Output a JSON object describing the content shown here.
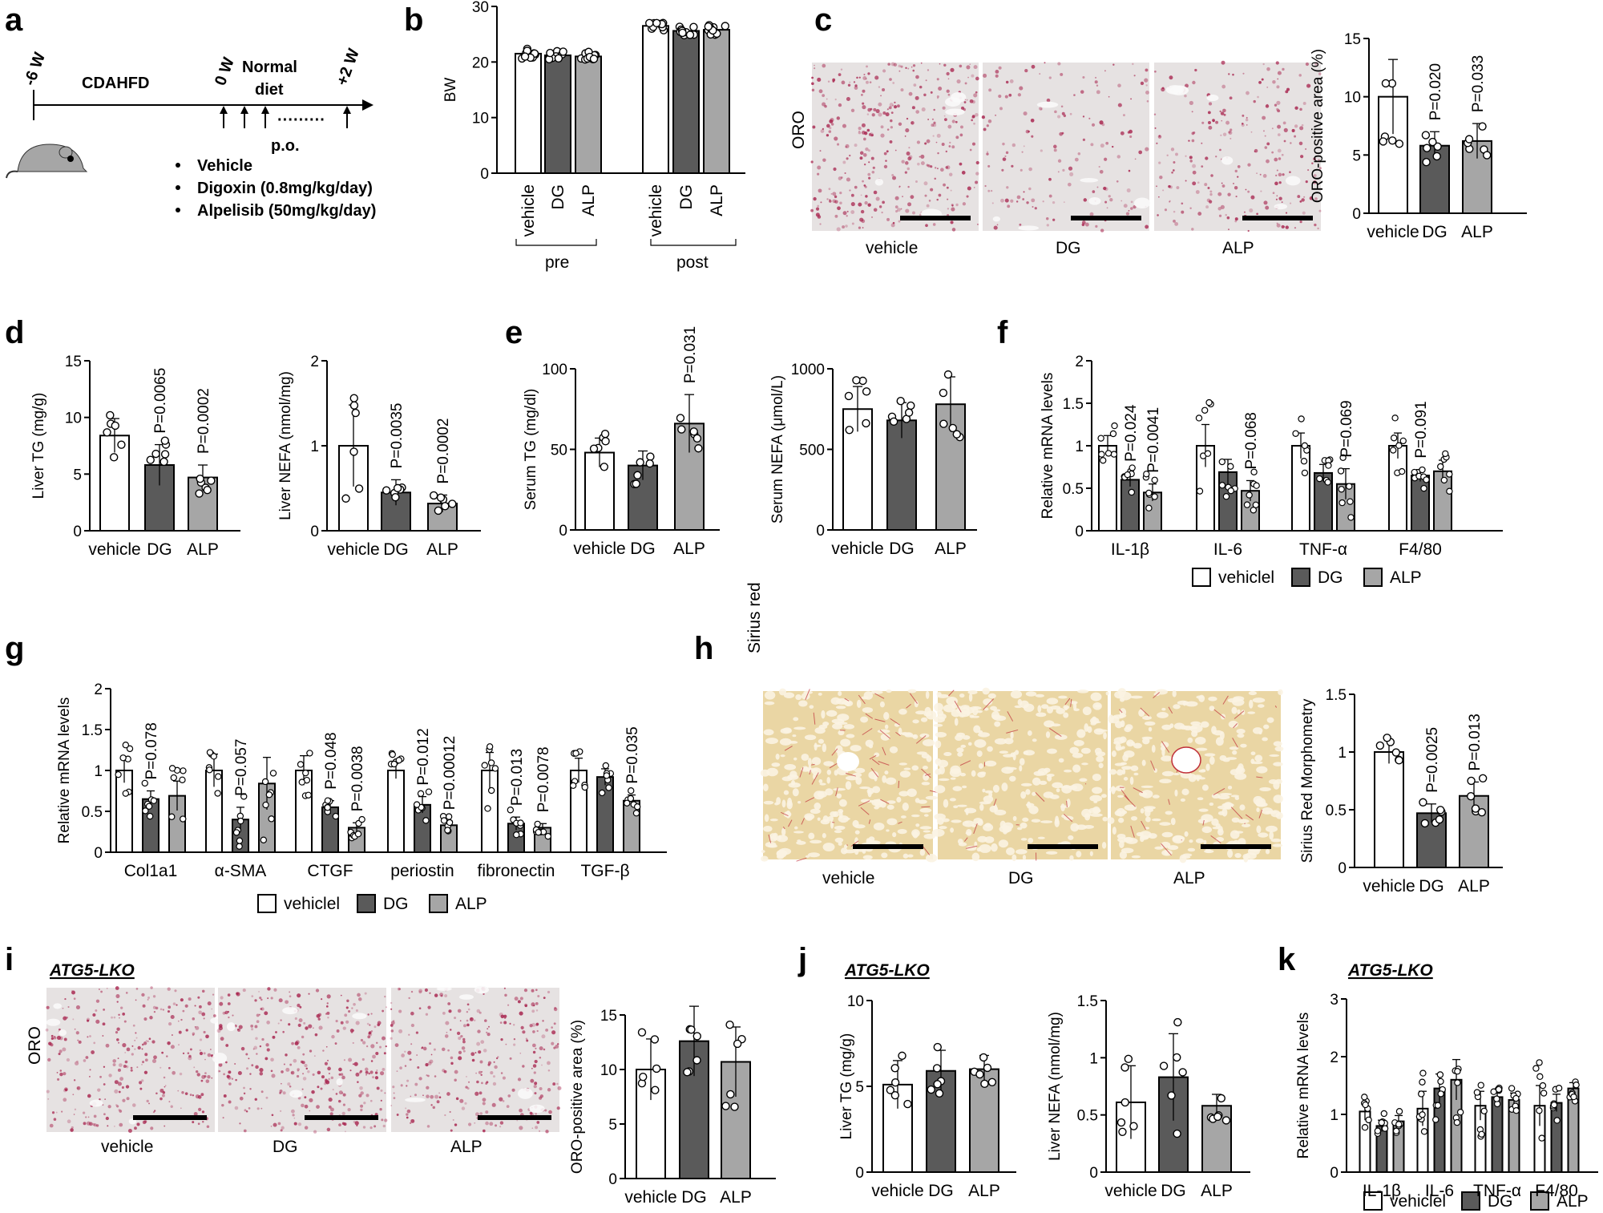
{
  "panel_letters": {
    "a": "a",
    "b": "b",
    "c": "c",
    "d": "d",
    "e": "e",
    "f": "f",
    "g": "g",
    "h": "h",
    "i": "i",
    "j": "j",
    "k": "k"
  },
  "timeline": {
    "start": "-6 W",
    "mid": "0 W",
    "end": "+2 W",
    "phase1": "CDAHFD",
    "phase2_line1": "Normal",
    "phase2_line2": "diet",
    "dots": "·········",
    "route": "p.o.",
    "bullets": [
      "Vehicle",
      "Digoxin (0.8mg/kg/day)",
      "Alpelisib (50mg/kg/day)"
    ]
  },
  "micrographs": {
    "c": {
      "row_label": "ORO",
      "labels": [
        "vehicle",
        "DG",
        "ALP"
      ]
    },
    "h": {
      "row_label": "Sirius red",
      "labels": [
        "vehicle",
        "DG",
        "ALP"
      ]
    },
    "i": {
      "row_label": "ORO",
      "labels": [
        "vehicle",
        "DG",
        "ALP"
      ]
    }
  },
  "atg_labels": {
    "i": "ATG5-LKO",
    "j": "ATG5-LKO",
    "k": "ATG5-LKO"
  },
  "legends": {
    "f": [
      "vehiclel",
      "DG",
      "ALP"
    ],
    "g": [
      "vehiclel",
      "DG",
      "ALP"
    ],
    "k": [
      "vehiclel",
      "DG",
      "ALP"
    ]
  },
  "colors": {
    "vehicle": "#ffffff",
    "DG": "#5a5a5a",
    "ALP": "#a6a6a6",
    "stroke": "#000000",
    "oro_bg": "#e6e2e2",
    "oro_dot": "#a8244e",
    "sirius_bg": "#ead6a4",
    "sirius_line": "#c0303a"
  },
  "chart_data": [
    {
      "id": "b",
      "type": "bar",
      "ylabel": "BW",
      "ylim": [
        0,
        30
      ],
      "yticks": [
        "0",
        "10",
        "20",
        "30"
      ],
      "categories": [
        "vehicle",
        "DG",
        "ALP",
        "vehicle",
        "DG",
        "ALP"
      ],
      "values": [
        21.5,
        21.2,
        21.0,
        26.5,
        25.6,
        25.8
      ],
      "group_labels": [
        "pre",
        "post"
      ]
    },
    {
      "id": "c",
      "type": "bar",
      "ylabel": "ORO-positive area (%)",
      "ylim": [
        0,
        15
      ],
      "yticks": [
        "0",
        "5",
        "10",
        "15"
      ],
      "categories": [
        "vehicle",
        "DG",
        "ALP"
      ],
      "values": [
        10.0,
        5.8,
        6.2
      ],
      "errors": [
        3.2,
        1.2,
        1.5
      ],
      "pvalues": [
        "",
        "P=0.020",
        "P=0.033"
      ]
    },
    {
      "id": "d1",
      "type": "bar",
      "ylabel": "Liver TG (mg/g)",
      "ylim": [
        0,
        15
      ],
      "yticks": [
        "0",
        "5",
        "10",
        "15"
      ],
      "categories": [
        "vehicle",
        "DG",
        "ALP"
      ],
      "values": [
        8.4,
        5.8,
        4.7
      ],
      "errors": [
        1.5,
        1.8,
        1.1
      ],
      "pvalues": [
        "",
        "P=0.0065",
        "P=0.0002"
      ]
    },
    {
      "id": "d2",
      "type": "bar",
      "ylabel": "Liver NEFA (nmol/mg)",
      "ylim": [
        0,
        2
      ],
      "yticks": [
        "0",
        "1",
        "2"
      ],
      "categories": [
        "vehicle",
        "DG",
        "ALP"
      ],
      "values": [
        1.0,
        0.45,
        0.32
      ],
      "errors": [
        0.48,
        0.15,
        0.1
      ],
      "pvalues": [
        "",
        "P=0.0035",
        "P=0.0002"
      ]
    },
    {
      "id": "e1",
      "type": "bar",
      "ylabel": "Serum TG (mg/dl)",
      "ylim": [
        0,
        100
      ],
      "yticks": [
        "0",
        "50",
        "100"
      ],
      "categories": [
        "vehicle",
        "DG",
        "ALP"
      ],
      "values": [
        48,
        40,
        66
      ],
      "errors": [
        9,
        9,
        18
      ],
      "pvalues": [
        "",
        "",
        "P=0.031"
      ]
    },
    {
      "id": "e2",
      "type": "bar",
      "ylabel": "Serum NEFA (μmol/L)",
      "ylim": [
        0,
        1000
      ],
      "yticks": [
        "0",
        "500",
        "1000"
      ],
      "categories": [
        "vehicle",
        "DG",
        "ALP"
      ],
      "values": [
        750,
        680,
        780
      ],
      "errors": [
        140,
        110,
        170
      ],
      "pvalues": [
        "",
        "",
        ""
      ]
    },
    {
      "id": "f",
      "type": "grouped-bar",
      "ylabel": "Relative mRNA levels",
      "ylim": [
        0,
        2
      ],
      "yticks": [
        "0",
        "0.5",
        "1",
        "1.5",
        "2"
      ],
      "categories": [
        "IL-1β",
        "IL-6",
        "TNF-α",
        "F4/80"
      ],
      "series": [
        {
          "name": "vehiclel",
          "values": [
            1.0,
            1.0,
            1.0,
            1.0
          ],
          "errors": [
            0.12,
            0.25,
            0.15,
            0.15
          ]
        },
        {
          "name": "DG",
          "values": [
            0.6,
            0.69,
            0.68,
            0.65
          ],
          "errors": [
            0.08,
            0.15,
            0.1,
            0.07
          ]
        },
        {
          "name": "ALP",
          "values": [
            0.45,
            0.47,
            0.55,
            0.7
          ],
          "errors": [
            0.1,
            0.12,
            0.18,
            0.13
          ]
        }
      ],
      "pvalues": [
        [
          "",
          "P=0.024",
          "P=0.0041"
        ],
        [
          "",
          "",
          "P=0.068"
        ],
        [
          "",
          "",
          "P=0.069"
        ],
        [
          "",
          "P=0.091",
          ""
        ]
      ]
    },
    {
      "id": "g",
      "type": "grouped-bar",
      "ylabel": "Relative mRNA levels",
      "ylim": [
        0,
        2
      ],
      "yticks": [
        "0",
        "0.5",
        "1",
        "1.5",
        "2"
      ],
      "categories": [
        "Col1a1",
        "α-SMA",
        "CTGF",
        "periostin",
        "fibronectin",
        "TGF-β"
      ],
      "series": [
        {
          "name": "vehiclel",
          "values": [
            1.0,
            1.0,
            1.0,
            1.0,
            1.0,
            1.0
          ],
          "errors": [
            0.15,
            0.2,
            0.18,
            0.1,
            0.22,
            0.15
          ]
        },
        {
          "name": "DG",
          "values": [
            0.65,
            0.4,
            0.55,
            0.58,
            0.35,
            0.92
          ],
          "errors": [
            0.1,
            0.15,
            0.08,
            0.1,
            0.08,
            0.1
          ]
        },
        {
          "name": "ALP",
          "values": [
            0.69,
            0.84,
            0.3,
            0.33,
            0.3,
            0.63
          ],
          "errors": [
            0.18,
            0.32,
            0.06,
            0.05,
            0.05,
            0.07
          ]
        }
      ],
      "pvalues": [
        [
          "",
          "P=0.078",
          ""
        ],
        [
          "",
          "P=0.057",
          ""
        ],
        [
          "",
          "P=0.048",
          "P=0.0038"
        ],
        [
          "",
          "P=0.012",
          "P=0.00012"
        ],
        [
          "",
          "P=0.013",
          "P=0.0078"
        ],
        [
          "",
          "",
          "P=0.035"
        ]
      ]
    },
    {
      "id": "h",
      "type": "bar",
      "ylabel": "Sirius Red Morphometry",
      "ylim": [
        0,
        1.5
      ],
      "yticks": [
        "0",
        "0.5",
        "1",
        "1.5"
      ],
      "categories": [
        "vehicle",
        "DG",
        "ALP"
      ],
      "values": [
        1.0,
        0.47,
        0.62
      ],
      "errors": [
        0.1,
        0.08,
        0.12
      ],
      "pvalues": [
        "",
        "P=0.0025",
        "P=0.013"
      ]
    },
    {
      "id": "i",
      "type": "bar",
      "ylabel": "ORO-positive area (%)",
      "ylim": [
        0,
        15
      ],
      "yticks": [
        "0",
        "5",
        "10",
        "15"
      ],
      "categories": [
        "vehicle",
        "DG",
        "ALP"
      ],
      "values": [
        10.0,
        12.6,
        10.7
      ],
      "errors": [
        2.8,
        3.2,
        3.2
      ],
      "pvalues": [
        "",
        "",
        ""
      ]
    },
    {
      "id": "j1",
      "type": "bar",
      "ylabel": "Liver TG (mg/g)",
      "ylim": [
        0,
        10
      ],
      "yticks": [
        "0",
        "5",
        "10"
      ],
      "categories": [
        "vehicle",
        "DG",
        "ALP"
      ],
      "values": [
        5.1,
        5.9,
        6.0
      ],
      "errors": [
        1.4,
        1.2,
        0.8
      ],
      "pvalues": [
        "",
        "",
        ""
      ]
    },
    {
      "id": "j2",
      "type": "bar",
      "ylabel": "Liver NEFA (nmol/mg)",
      "ylim": [
        0,
        1.5
      ],
      "yticks": [
        "0",
        "0.5",
        "1",
        "1.5"
      ],
      "categories": [
        "vehicle",
        "DG",
        "ALP"
      ],
      "values": [
        0.61,
        0.83,
        0.58
      ],
      "errors": [
        0.32,
        0.38,
        0.1
      ],
      "pvalues": [
        "",
        "",
        ""
      ]
    },
    {
      "id": "k",
      "type": "grouped-bar",
      "ylabel": "Relative mRNA levels",
      "ylim": [
        0,
        3
      ],
      "yticks": [
        "0",
        "1",
        "2",
        "3"
      ],
      "categories": [
        "IL-1β",
        "IL-6",
        "TNF-α",
        "F4/80"
      ],
      "series": [
        {
          "name": "vehiclel",
          "values": [
            1.05,
            1.1,
            1.15,
            1.15
          ],
          "errors": [
            0.15,
            0.3,
            0.25,
            0.35
          ]
        },
        {
          "name": "DG",
          "values": [
            0.8,
            1.45,
            1.3,
            1.2
          ],
          "errors": [
            0.1,
            0.25,
            0.1,
            0.15
          ]
        },
        {
          "name": "ALP",
          "values": [
            0.88,
            1.6,
            1.25,
            1.45
          ],
          "errors": [
            0.1,
            0.35,
            0.12,
            0.1
          ]
        }
      ],
      "pvalues": [
        [
          "",
          "",
          ""
        ],
        [
          "",
          "",
          ""
        ],
        [
          "",
          "",
          ""
        ],
        [
          "",
          "",
          ""
        ]
      ]
    }
  ]
}
